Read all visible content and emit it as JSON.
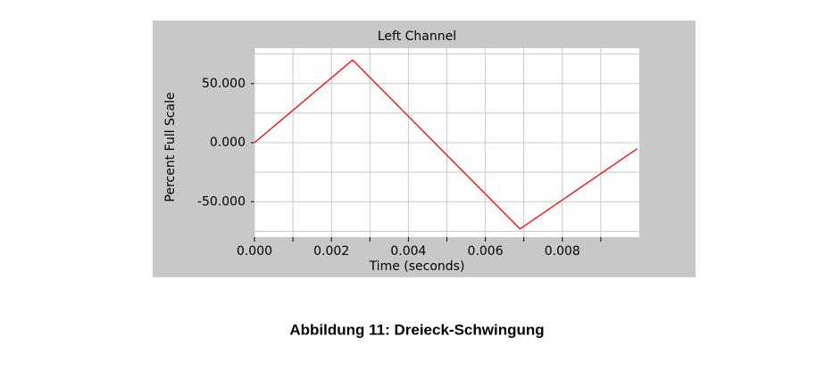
{
  "chart_data": {
    "type": "line",
    "title": "Left Channel",
    "xlabel": "Time (seconds)",
    "ylabel": "Percent Full Scale",
    "x": [
      0,
      0.00255,
      0.0069,
      0.00995
    ],
    "series": [
      {
        "name": "Left Channel",
        "color": "#ff0000",
        "values": [
          0,
          70,
          -73,
          -5
        ]
      }
    ],
    "xlim": [
      0,
      0.01
    ],
    "ylim": [
      -80,
      80
    ],
    "xticks": [
      {
        "value": 0,
        "label": "0.000"
      },
      {
        "value": 0.002,
        "label": "0.002"
      },
      {
        "value": 0.004,
        "label": "0.004"
      },
      {
        "value": 0.006,
        "label": "0.006"
      },
      {
        "value": 0.008,
        "label": "0.008"
      }
    ],
    "xminorticks": [
      0.001,
      0.003,
      0.005,
      0.007,
      0.009
    ],
    "yticks": [
      {
        "value": -50,
        "label": "-50.000"
      },
      {
        "value": 0,
        "label": "0.000"
      },
      {
        "value": 50,
        "label": "50.000"
      }
    ],
    "yminorticks": [
      -75,
      -25,
      25,
      75
    ],
    "grid": true
  },
  "caption": "Abbildung 11: Dreieck-Schwingung"
}
